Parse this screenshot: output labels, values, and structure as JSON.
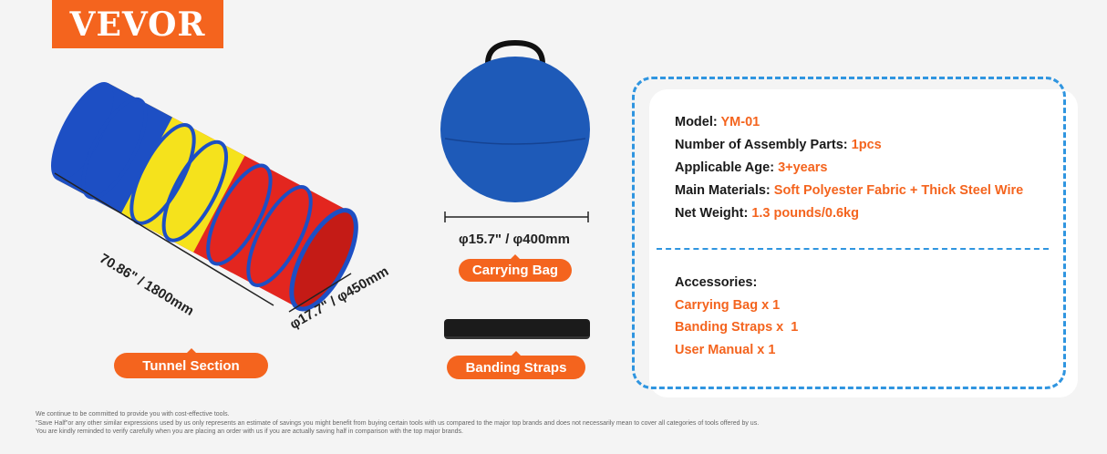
{
  "brand": "VEVOR",
  "tunnel": {
    "length": "70.86\" / 1800mm",
    "diameter": "φ17.7\" / φ450mm",
    "label": "Tunnel Section",
    "colors": [
      "#1d4fc4",
      "#f5e21c",
      "#e3261f"
    ]
  },
  "bag": {
    "diameter": "φ15.7\" / φ400mm",
    "label": "Carrying Bag",
    "color": "#1e5ab8"
  },
  "straps": {
    "label": "Banding Straps"
  },
  "specs": [
    {
      "label": "Model: ",
      "value": "YM-01"
    },
    {
      "label": "Number of Assembly Parts: ",
      "value": "1pcs"
    },
    {
      "label": "Applicable Age: ",
      "value": "3+years"
    },
    {
      "label": "Main Materials: ",
      "value": "Soft Polyester Fabric + Thick Steel Wire"
    },
    {
      "label": "Net Weight: ",
      "value": "1.3 pounds/0.6kg"
    }
  ],
  "accessories": {
    "title": "Accessories:",
    "items": [
      "Carrying Bag x 1",
      "Banding Straps x  1",
      "User Manual x 1"
    ]
  },
  "footer": [
    "We continue to be committed to provide you with cost-effective tools.",
    "\"Save Half\"or any other similar expressions used by us only represents an estimate of savings you might benefit from buying certain tools with us compared to the major top brands and does not necessarily mean to cover all categories of tools offered by us.",
    "You are kindly reminded to verify carefully when you are placing an order with us if you are actually saving half in comparison with the top major brands."
  ],
  "colors": {
    "accent": "#f4641e",
    "border": "#2f95e0"
  }
}
